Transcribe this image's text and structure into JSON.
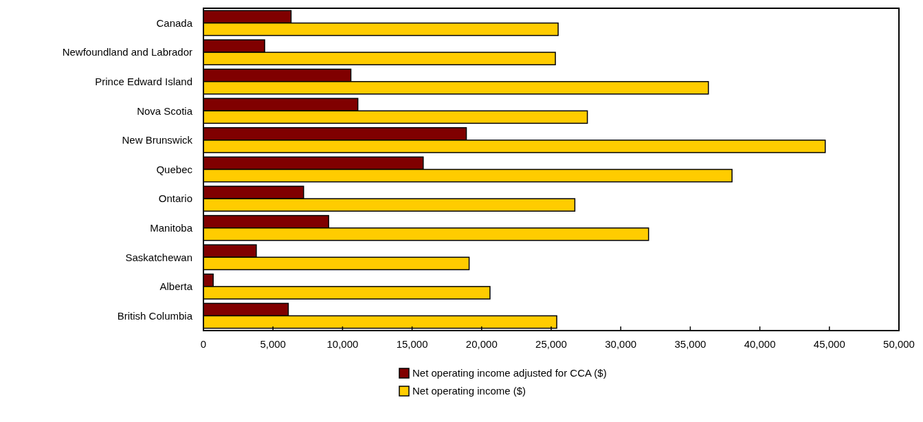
{
  "chart_data": {
    "type": "bar",
    "orientation": "horizontal",
    "categories": [
      "Canada",
      "Newfoundland and Labrador",
      "Prince Edward Island",
      "Nova Scotia",
      "New Brunswick",
      "Quebec",
      "Ontario",
      "Manitoba",
      "Saskatchewan",
      "Alberta",
      "British Columbia"
    ],
    "series": [
      {
        "name": "Net operating income adjusted for CCA ($)",
        "color": "#800000",
        "values": [
          6300,
          4400,
          10600,
          11100,
          18900,
          15800,
          7200,
          9000,
          3800,
          700,
          6100
        ]
      },
      {
        "name": "Net operating income ($)",
        "color": "#ffcc00",
        "values": [
          25500,
          25300,
          36300,
          27600,
          44700,
          38000,
          26700,
          32000,
          19100,
          20600,
          25400
        ]
      }
    ],
    "xlim": [
      0,
      50000
    ],
    "xticks": [
      0,
      {
        "value": 5000,
        "label": "5,000"
      },
      {
        "value": 10000,
        "label": "10,000"
      },
      {
        "value": 15000,
        "label": "15,000"
      },
      {
        "value": 20000,
        "label": "20,000"
      },
      {
        "value": 25000,
        "label": "25,000"
      },
      {
        "value": 30000,
        "label": "30,000"
      },
      {
        "value": 35000,
        "label": "35,000"
      },
      {
        "value": 40000,
        "label": "40,000"
      },
      {
        "value": 45000,
        "label": "45,000"
      },
      {
        "value": 50000,
        "label": "50,000"
      }
    ],
    "grid": false,
    "legend": "bottom"
  }
}
